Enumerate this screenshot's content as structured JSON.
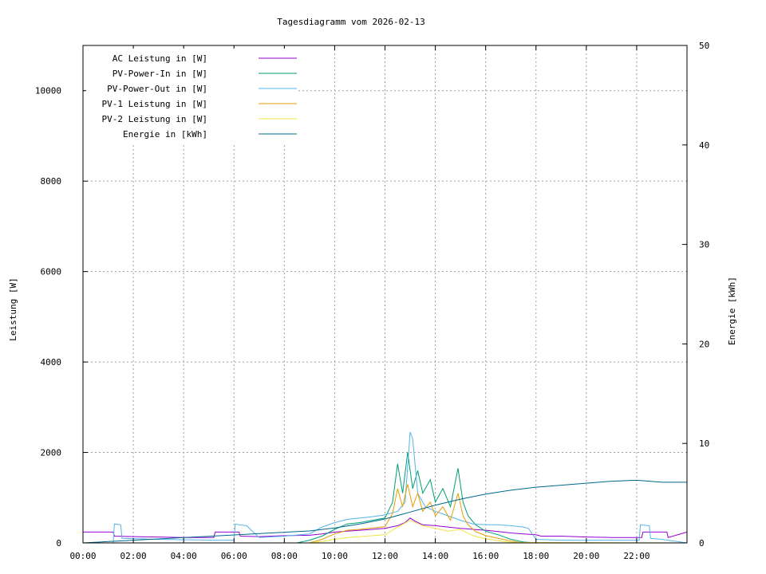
{
  "chart_data": {
    "type": "line",
    "title": "Tagesdiagramm vom 2026-02-13",
    "xlabel": "",
    "ylabel": "Leistung [W]",
    "y2label": "Energie in [kWh]",
    "y2label_axis": "Energie [kWh]",
    "xlim": [
      0,
      24
    ],
    "ylim": [
      0,
      11000
    ],
    "y2lim": [
      0,
      50
    ],
    "x_ticks": [
      {
        "value": 0,
        "label": "00:00"
      },
      {
        "value": 2,
        "label": "02:00"
      },
      {
        "value": 4,
        "label": "04:00"
      },
      {
        "value": 6,
        "label": "06:00"
      },
      {
        "value": 8,
        "label": "08:00"
      },
      {
        "value": 10,
        "label": "10:00"
      },
      {
        "value": 12,
        "label": "12:00"
      },
      {
        "value": 14,
        "label": "14:00"
      },
      {
        "value": 16,
        "label": "16:00"
      },
      {
        "value": 18,
        "label": "18:00"
      },
      {
        "value": 20,
        "label": "20:00"
      },
      {
        "value": 22,
        "label": "22:00"
      }
    ],
    "y_ticks": [
      {
        "value": 0,
        "label": "0"
      },
      {
        "value": 2000,
        "label": "2000"
      },
      {
        "value": 4000,
        "label": "4000"
      },
      {
        "value": 6000,
        "label": "6000"
      },
      {
        "value": 8000,
        "label": "8000"
      },
      {
        "value": 10000,
        "label": "10000"
      }
    ],
    "y2_ticks": [
      {
        "value": 0,
        "label": "0"
      },
      {
        "value": 10,
        "label": "10"
      },
      {
        "value": 20,
        "label": "20"
      },
      {
        "value": 30,
        "label": "30"
      },
      {
        "value": 40,
        "label": "40"
      },
      {
        "value": 50,
        "label": "50"
      }
    ],
    "grid": true,
    "legend_position": "top-left",
    "series": [
      {
        "name": "AC Leistung in [W]",
        "color": "#9400d3",
        "axis": "left",
        "x": [
          0,
          1.2,
          1.25,
          2,
          3,
          4,
          5.2,
          5.25,
          6,
          6.2,
          6.25,
          7,
          8,
          9,
          9.5,
          10,
          10.5,
          11,
          11.5,
          12,
          12.5,
          12.8,
          13,
          13.2,
          13.5,
          14,
          14.5,
          15,
          15.5,
          16,
          16.5,
          17,
          17.5,
          18,
          18.2,
          19,
          20,
          21,
          22,
          22.2,
          22.25,
          23,
          23.2,
          23.25,
          24
        ],
        "y": [
          240,
          240,
          150,
          140,
          130,
          120,
          120,
          240,
          240,
          240,
          150,
          140,
          160,
          170,
          200,
          240,
          260,
          280,
          300,
          320,
          380,
          450,
          550,
          480,
          400,
          380,
          350,
          320,
          300,
          280,
          250,
          220,
          200,
          180,
          150,
          150,
          130,
          120,
          120,
          120,
          240,
          240,
          240,
          120,
          240
        ]
      },
      {
        "name": "PV-Power-In in [W]",
        "color": "#009e73",
        "axis": "left",
        "x": [
          0,
          8.5,
          9,
          9.5,
          10,
          10.5,
          11,
          11.5,
          12,
          12.3,
          12.5,
          12.7,
          12.9,
          13.1,
          13.3,
          13.5,
          13.8,
          14,
          14.3,
          14.6,
          14.9,
          15.1,
          15.3,
          15.6,
          16,
          16.5,
          17,
          17.5,
          18,
          24
        ],
        "y": [
          0,
          0,
          60,
          150,
          300,
          420,
          450,
          500,
          550,
          900,
          1750,
          1100,
          2000,
          1200,
          1600,
          1100,
          1400,
          900,
          1200,
          800,
          1650,
          900,
          600,
          400,
          260,
          180,
          80,
          20,
          0,
          0
        ]
      },
      {
        "name": "PV-Power-Out in [W]",
        "color": "#56b4e9",
        "axis": "left",
        "x": [
          0,
          1.2,
          1.25,
          1.5,
          1.55,
          3,
          5.2,
          6,
          6.05,
          6.2,
          6.5,
          7,
          8,
          9,
          9.5,
          10,
          10.5,
          11,
          11.5,
          12,
          12.5,
          12.8,
          13,
          13.1,
          13.3,
          13.6,
          14,
          14.5,
          15,
          15.5,
          16,
          16.5,
          17,
          17.5,
          17.7,
          18,
          19,
          20,
          21,
          22.1,
          22.15,
          22.5,
          22.55,
          23,
          24
        ],
        "y": [
          0,
          0,
          420,
          400,
          100,
          80,
          60,
          60,
          420,
          400,
          380,
          120,
          150,
          200,
          350,
          450,
          520,
          550,
          580,
          620,
          700,
          900,
          2450,
          2300,
          1100,
          800,
          700,
          600,
          500,
          420,
          400,
          400,
          380,
          350,
          320,
          80,
          60,
          60,
          60,
          60,
          400,
          380,
          100,
          80,
          0
        ]
      },
      {
        "name": "PV-1 Leistung in [W]",
        "color": "#e69f00",
        "axis": "left",
        "x": [
          0,
          9,
          9.5,
          10,
          10.5,
          11,
          11.5,
          12,
          12.3,
          12.5,
          12.7,
          12.9,
          13.1,
          13.3,
          13.5,
          13.8,
          14,
          14.3,
          14.6,
          14.9,
          15.1,
          15.3,
          15.6,
          16,
          16.5,
          17,
          17.5,
          24
        ],
        "y": [
          0,
          0,
          80,
          200,
          280,
          300,
          330,
          360,
          650,
          1200,
          800,
          1300,
          800,
          1100,
          700,
          900,
          600,
          800,
          500,
          1100,
          600,
          400,
          250,
          160,
          100,
          40,
          0,
          0
        ]
      },
      {
        "name": "PV-2 Leistung in [W]",
        "color": "#f0e442",
        "axis": "left",
        "x": [
          0,
          9,
          9.5,
          10,
          10.5,
          11,
          11.5,
          12,
          12.5,
          13,
          13.5,
          14,
          14.5,
          15,
          15.5,
          16,
          16.5,
          17,
          24
        ],
        "y": [
          0,
          0,
          30,
          80,
          120,
          140,
          160,
          180,
          350,
          500,
          380,
          320,
          260,
          300,
          160,
          90,
          50,
          10,
          0
        ]
      },
      {
        "name": "Energie in [kWh]",
        "color": "#00688b",
        "axis": "right",
        "x": [
          0,
          9,
          10,
          11,
          12,
          13,
          14,
          15,
          16,
          17,
          18,
          19,
          20,
          21,
          22,
          23,
          24
        ],
        "y": [
          0,
          1.2,
          1.5,
          1.9,
          2.4,
          3.1,
          3.8,
          4.4,
          4.9,
          5.3,
          5.6,
          5.8,
          6.0,
          6.2,
          6.3,
          6.1,
          6.1
        ]
      }
    ]
  }
}
